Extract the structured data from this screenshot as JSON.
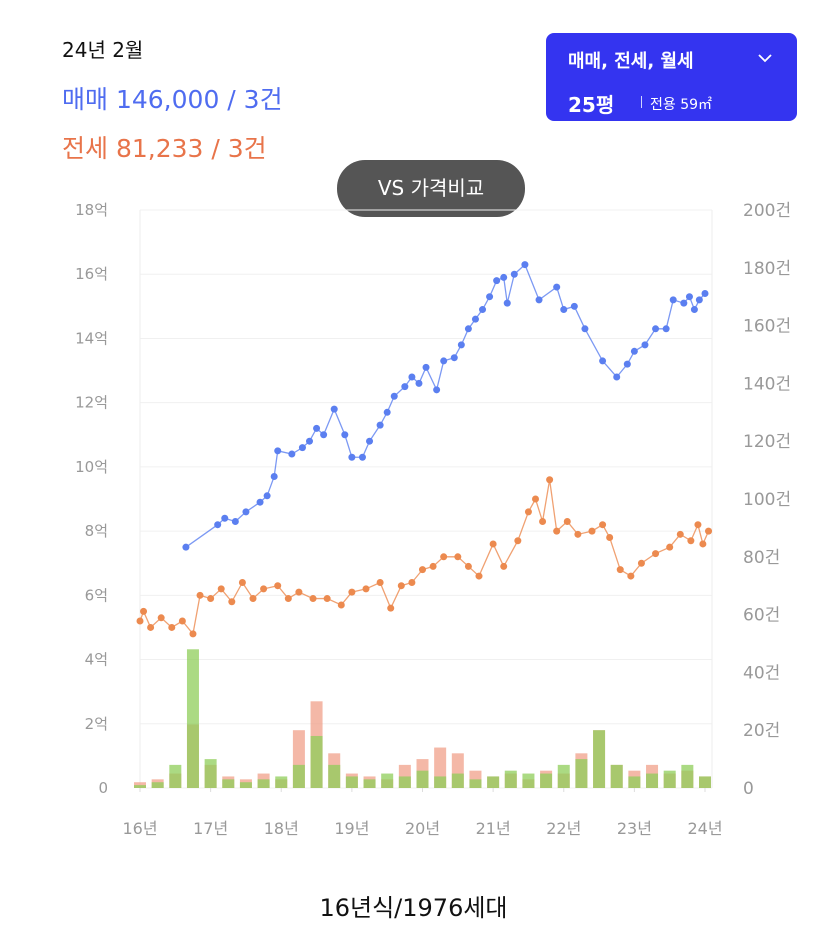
{
  "header": {
    "period": "24년 2월",
    "sale": {
      "label": "매매",
      "value": "146,000 / 3건"
    },
    "rent": {
      "label": "전세",
      "value": "81,233 / 3건"
    }
  },
  "filter": {
    "deal_types": "매매, 전세, 월세",
    "size": "25평",
    "area": "전용 59㎡"
  },
  "compare_button": "VS 가격비교",
  "footer": "16년식/1976세대",
  "chart_data": {
    "type": "line",
    "grid": true,
    "xlim": [
      16,
      24.1
    ],
    "xticks": [
      {
        "value": 16,
        "label": "16년"
      },
      {
        "value": 17,
        "label": "17년"
      },
      {
        "value": 18,
        "label": "18년"
      },
      {
        "value": 19,
        "label": "19년"
      },
      {
        "value": 20,
        "label": "20년"
      },
      {
        "value": 21,
        "label": "21년"
      },
      {
        "value": 22,
        "label": "22년"
      },
      {
        "value": 23,
        "label": "23년"
      },
      {
        "value": 24,
        "label": "24년"
      }
    ],
    "ylim": [
      0,
      18
    ],
    "yticks": [
      0,
      {
        "value": 2,
        "label": "2억"
      },
      {
        "value": 4,
        "label": "4억"
      },
      {
        "value": 6,
        "label": "6억"
      },
      {
        "value": 8,
        "label": "8억"
      },
      {
        "value": 10,
        "label": "10억"
      },
      {
        "value": 12,
        "label": "12억"
      },
      {
        "value": 14,
        "label": "14억"
      },
      {
        "value": 16,
        "label": "16억"
      },
      {
        "value": 18,
        "label": "18억"
      }
    ],
    "y2lim": [
      0,
      200
    ],
    "y2ticks": [
      0,
      {
        "value": 20,
        "label": "20건"
      },
      {
        "value": 40,
        "label": "40건"
      },
      {
        "value": 60,
        "label": "60건"
      },
      {
        "value": 80,
        "label": "80건"
      },
      {
        "value": 100,
        "label": "100건"
      },
      {
        "value": 120,
        "label": "120건"
      },
      {
        "value": 140,
        "label": "140건"
      },
      {
        "value": 160,
        "label": "160건"
      },
      {
        "value": 180,
        "label": "180건"
      },
      {
        "value": 200,
        "label": "200건"
      }
    ],
    "series": [
      {
        "type": "bar",
        "axis": "y2",
        "color": "#f0a08a",
        "x": [
          16,
          16.25,
          16.5,
          16.75,
          17,
          17.25,
          17.5,
          17.75,
          18,
          18.25,
          18.5,
          18.75,
          19,
          19.25,
          19.5,
          19.75,
          20,
          20.25,
          20.5,
          20.75,
          21,
          21.25,
          21.5,
          21.75,
          22,
          22.25,
          22.5,
          22.75,
          23,
          23.25,
          23.5,
          23.75,
          24
        ],
        "values": [
          2,
          3,
          5,
          22,
          8,
          4,
          3,
          5,
          3,
          20,
          30,
          12,
          5,
          4,
          3,
          8,
          10,
          14,
          12,
          6,
          4,
          5,
          3,
          6,
          5,
          12,
          20,
          8,
          6,
          8,
          5,
          6,
          4
        ]
      },
      {
        "type": "bar",
        "axis": "y2",
        "color": "#8fce5a",
        "x": [
          16,
          16.25,
          16.5,
          16.75,
          17,
          17.25,
          17.5,
          17.75,
          18,
          18.25,
          18.5,
          18.75,
          19,
          19.25,
          19.5,
          19.75,
          20,
          20.25,
          20.5,
          20.75,
          21,
          21.25,
          21.5,
          21.75,
          22,
          22.25,
          22.5,
          22.75,
          23,
          23.25,
          23.5,
          23.75,
          24
        ],
        "values": [
          1,
          2,
          8,
          48,
          10,
          3,
          2,
          3,
          4,
          8,
          18,
          8,
          4,
          3,
          5,
          4,
          6,
          4,
          5,
          3,
          4,
          6,
          5,
          5,
          8,
          10,
          20,
          8,
          4,
          5,
          6,
          8,
          4
        ]
      },
      {
        "type": "line",
        "color": "#ec8a4f",
        "x": [
          16,
          16.05,
          16.15,
          16.3,
          16.45,
          16.6,
          16.75,
          16.85,
          17,
          17.15,
          17.3,
          17.45,
          17.6,
          17.75,
          17.95,
          18.1,
          18.25,
          18.45,
          18.65,
          18.85,
          19,
          19.2,
          19.4,
          19.55,
          19.7,
          19.85,
          20,
          20.15,
          20.3,
          20.5,
          20.65,
          20.8,
          21,
          21.15,
          21.35,
          21.5,
          21.6,
          21.7,
          21.8,
          21.9,
          22.05,
          22.2,
          22.4,
          22.55,
          22.65,
          22.8,
          22.95,
          23.1,
          23.3,
          23.5,
          23.65,
          23.8,
          23.9,
          23.97,
          24.05
        ],
        "values": [
          5.2,
          5.5,
          5.0,
          5.3,
          5.0,
          5.2,
          4.8,
          6.0,
          5.9,
          6.2,
          5.8,
          6.4,
          5.9,
          6.2,
          6.3,
          5.9,
          6.1,
          5.9,
          5.9,
          5.7,
          6.1,
          6.2,
          6.4,
          5.6,
          6.3,
          6.4,
          6.8,
          6.9,
          7.2,
          7.2,
          6.9,
          6.6,
          7.6,
          6.9,
          7.7,
          8.6,
          9.0,
          8.3,
          9.6,
          8.0,
          8.3,
          7.9,
          8.0,
          8.2,
          7.8,
          6.8,
          6.6,
          7.0,
          7.3,
          7.5,
          7.9,
          7.7,
          8.2,
          7.6,
          8.0
        ]
      },
      {
        "type": "line",
        "color": "#5b7ff0",
        "x": [
          16.65,
          17.1,
          17.2,
          17.35,
          17.5,
          17.7,
          17.8,
          17.9,
          17.95,
          18.15,
          18.3,
          18.4,
          18.5,
          18.6,
          18.75,
          18.9,
          19,
          19.15,
          19.25,
          19.4,
          19.5,
          19.6,
          19.75,
          19.85,
          19.95,
          20.05,
          20.2,
          20.3,
          20.45,
          20.55,
          20.65,
          20.75,
          20.85,
          20.95,
          21.05,
          21.15,
          21.2,
          21.3,
          21.45,
          21.65,
          21.9,
          22,
          22.15,
          22.3,
          22.55,
          22.75,
          22.9,
          23,
          23.15,
          23.3,
          23.45,
          23.55,
          23.7,
          23.78,
          23.85,
          23.92,
          24
        ],
        "values": [
          7.5,
          8.2,
          8.4,
          8.3,
          8.6,
          8.9,
          9.1,
          9.7,
          10.5,
          10.4,
          10.6,
          10.8,
          11.2,
          11.0,
          11.8,
          11.0,
          10.3,
          10.3,
          10.8,
          11.3,
          11.7,
          12.2,
          12.5,
          12.8,
          12.6,
          13.1,
          12.4,
          13.3,
          13.4,
          13.8,
          14.3,
          14.6,
          14.9,
          15.3,
          15.8,
          15.9,
          15.1,
          16.0,
          16.3,
          15.2,
          15.6,
          14.9,
          15.0,
          14.3,
          13.3,
          12.8,
          13.2,
          13.6,
          13.8,
          14.3,
          14.3,
          15.2,
          15.1,
          15.3,
          14.9,
          15.2,
          15.4
        ]
      }
    ]
  }
}
